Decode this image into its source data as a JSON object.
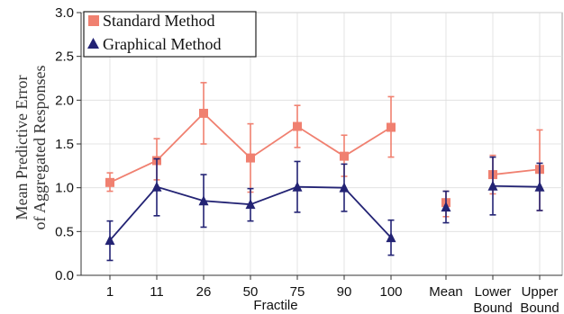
{
  "chart_data": {
    "type": "line",
    "ylabel_lines": [
      "Mean Predictive Error",
      "of Aggregated Responses"
    ],
    "xlabel": "Fractile",
    "ylim": [
      0,
      3.0
    ],
    "yticks": [
      "0.0",
      "0.5",
      "1.0",
      "1.5",
      "2.0",
      "2.5",
      "3.0"
    ],
    "categories": [
      "1",
      "11",
      "26",
      "50",
      "75",
      "90",
      "100",
      "Mean",
      "Lower\nBound",
      "Upper\nBound"
    ],
    "grid": true,
    "legend_position": "top-left",
    "series": [
      {
        "name": "Standard Method",
        "color": "#F08070",
        "marker": "square",
        "values": [
          1.06,
          1.31,
          1.85,
          1.34,
          1.7,
          1.36,
          1.69,
          0.83,
          1.15,
          1.21
        ],
        "err_low": [
          0.96,
          1.09,
          1.5,
          0.95,
          1.46,
          1.13,
          1.35,
          0.67,
          0.93,
          0.74
        ],
        "err_high": [
          1.17,
          1.56,
          2.2,
          1.73,
          1.94,
          1.6,
          2.04,
          0.96,
          1.37,
          1.66
        ]
      },
      {
        "name": "Graphical Method",
        "color": "#232374",
        "marker": "triangle",
        "values": [
          0.4,
          1.01,
          0.85,
          0.81,
          1.01,
          1.0,
          0.43,
          0.78,
          1.02,
          1.01
        ],
        "err_low": [
          0.17,
          0.68,
          0.55,
          0.62,
          0.72,
          0.73,
          0.23,
          0.6,
          0.69,
          0.74
        ],
        "err_high": [
          0.62,
          1.33,
          1.15,
          0.99,
          1.3,
          1.27,
          0.63,
          0.96,
          1.35,
          1.28
        ]
      }
    ],
    "line_segments": [
      [
        0,
        6
      ],
      [
        8,
        9
      ]
    ]
  }
}
